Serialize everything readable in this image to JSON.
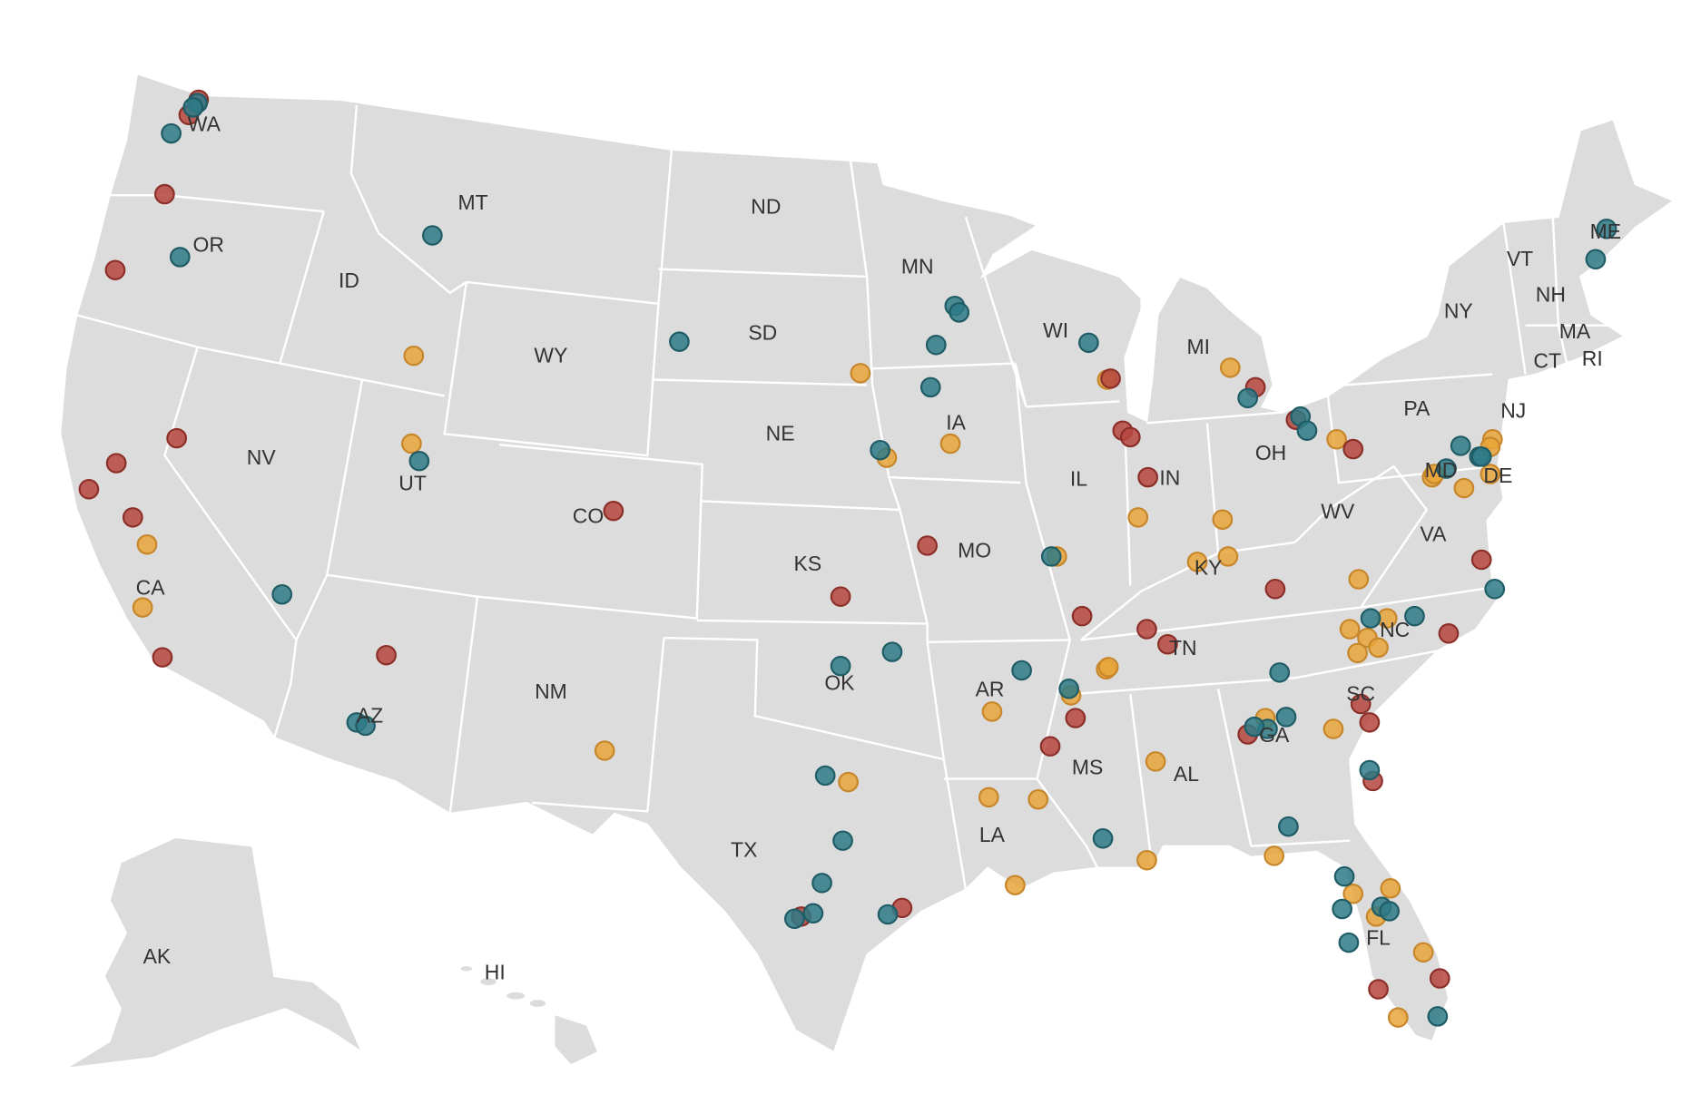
{
  "state_labels": [
    "WA",
    "OR",
    "CA",
    "NV",
    "ID",
    "MT",
    "WY",
    "UT",
    "CO",
    "AZ",
    "NM",
    "ND",
    "SD",
    "NE",
    "KS",
    "OK",
    "TX",
    "MN",
    "IA",
    "MO",
    "AR",
    "LA",
    "WI",
    "IL",
    "MS",
    "AL",
    "MI",
    "IN",
    "KY",
    "TN",
    "OH",
    "GA",
    "FL",
    "SC",
    "NC",
    "WV",
    "VA",
    "PA",
    "NY",
    "VT",
    "NH",
    "ME",
    "MA",
    "CT",
    "RI",
    "NJ",
    "DE",
    "MD",
    "AK",
    "HI"
  ]
}
